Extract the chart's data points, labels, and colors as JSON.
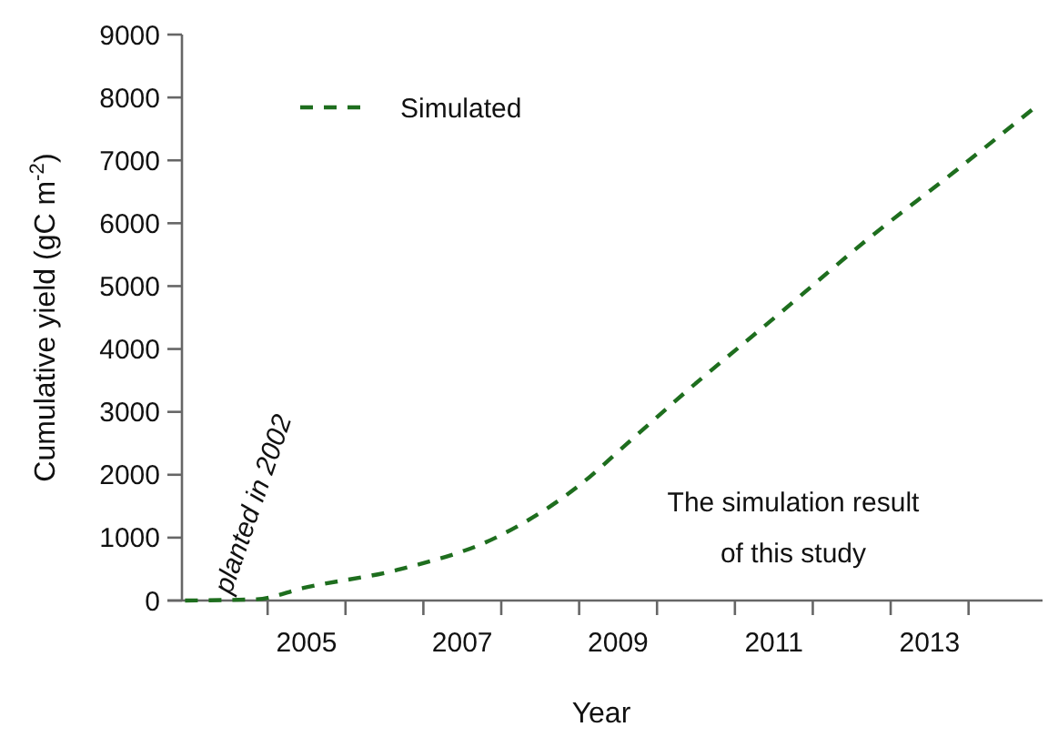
{
  "chart_data": {
    "type": "line",
    "xlabel": "Year",
    "ylabel": "Cumulative yield (gC m$^{-2}$)",
    "x": [
      2003.44,
      2004.36,
      2004.96,
      2006.21,
      2007.43,
      2008.47,
      2009.21,
      2009.9,
      2011.06,
      2012.21,
      2013.3,
      2014.36
    ],
    "series": [
      {
        "name": "Simulated",
        "color": "#1e6e1e",
        "values": [
          0,
          20,
          200,
          500,
          1000,
          1800,
          2600,
          3350,
          4550,
          5750,
          6800,
          7850
        ]
      }
    ],
    "xlim": [
      2003.4,
      2014.45
    ],
    "xticks": [
      {
        "value": 2004.5,
        "label": null
      },
      2005,
      {
        "value": 2005.5,
        "label": null
      },
      {
        "value": 2006.5,
        "label": null
      },
      2007,
      {
        "value": 2007.5,
        "label": null
      },
      {
        "value": 2008.5,
        "label": null
      },
      2009,
      {
        "value": 2009.5,
        "label": null
      },
      {
        "value": 2010.5,
        "label": null
      },
      2011,
      {
        "value": 2011.5,
        "label": null
      },
      {
        "value": 2012.5,
        "label": null
      },
      2013,
      {
        "value": 2013.5,
        "label": null
      }
    ],
    "ylim": [
      0,
      9000
    ],
    "yticks": [
      0,
      1000,
      2000,
      3000,
      4000,
      5000,
      6000,
      7000,
      8000,
      9000
    ],
    "line_style": "dashed",
    "marker": "none",
    "legend": "top left",
    "grid": false,
    "annotations": [
      "planted in 2002",
      "The simulation result\nof this study"
    ]
  }
}
